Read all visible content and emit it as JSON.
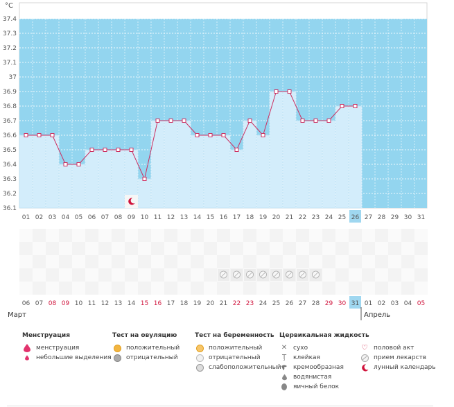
{
  "chart_data": {
    "type": "line",
    "unit": "°C",
    "ylim": [
      36.1,
      37.4
    ],
    "y_ticks": [
      "36.1",
      "36.2",
      "36.3",
      "36.4",
      "36.5",
      "36.6",
      "36.7",
      "36.8",
      "36.9",
      "37",
      "37.1",
      "37.2",
      "37.3",
      "37.4"
    ],
    "x_labels_top": [
      "01",
      "02",
      "03",
      "04",
      "05",
      "06",
      "07",
      "08",
      "09",
      "10",
      "11",
      "12",
      "13",
      "14",
      "15",
      "16",
      "17",
      "18",
      "19",
      "20",
      "21",
      "22",
      "23",
      "24",
      "25",
      "26",
      "27",
      "28",
      "29",
      "30",
      "31"
    ],
    "x_labels_bottom": [
      "06",
      "07",
      "08",
      "09",
      "10",
      "11",
      "12",
      "13",
      "14",
      "15",
      "16",
      "17",
      "18",
      "19",
      "20",
      "21",
      "22",
      "23",
      "24",
      "25",
      "26",
      "27",
      "28",
      "29",
      "30",
      "31",
      "01",
      "02",
      "03",
      "04",
      "05"
    ],
    "red_bottom_indices": [
      2,
      3,
      9,
      10,
      16,
      17,
      23,
      24,
      30
    ],
    "highlight_index": 25,
    "month_left": "Март",
    "month_right": "Апрель",
    "series": [
      {
        "values": [
          36.6,
          36.6,
          36.6,
          36.4,
          36.4,
          36.5,
          36.5,
          36.5,
          36.5,
          36.3,
          36.7,
          36.7,
          36.7,
          36.6,
          36.6,
          36.6,
          36.5,
          36.7,
          36.6,
          36.9,
          36.9,
          36.7,
          36.7,
          36.7,
          36.8,
          36.8
        ]
      }
    ],
    "moon_day_index": 8,
    "pill_day_indices": [
      15,
      16,
      17,
      18,
      19,
      20,
      21,
      22
    ],
    "grid": true,
    "colors": {
      "band": "#93d5ef",
      "bar": "#d3edfb",
      "line": "#cc2f60",
      "highlight": "#9fd7f0"
    }
  },
  "legend": {
    "menstruation": {
      "title": "Менструация",
      "items": [
        "менструация",
        "небольшие выделения"
      ]
    },
    "ovulation": {
      "title": "Тест на овуляцию",
      "items": [
        "положительный",
        "отрицательный"
      ]
    },
    "pregnancy": {
      "title": "Тест на беременность",
      "items": [
        "положительный",
        "отрицательный",
        "слабоположительный"
      ]
    },
    "cervical": {
      "title": "Цервикальная жидкость",
      "items": [
        "сухо",
        "клейкая",
        "кремообразная",
        "водянистая",
        "яичный белок"
      ]
    },
    "other": {
      "items": [
        "половой акт",
        "прием лекарств",
        "лунный календарь"
      ]
    }
  }
}
